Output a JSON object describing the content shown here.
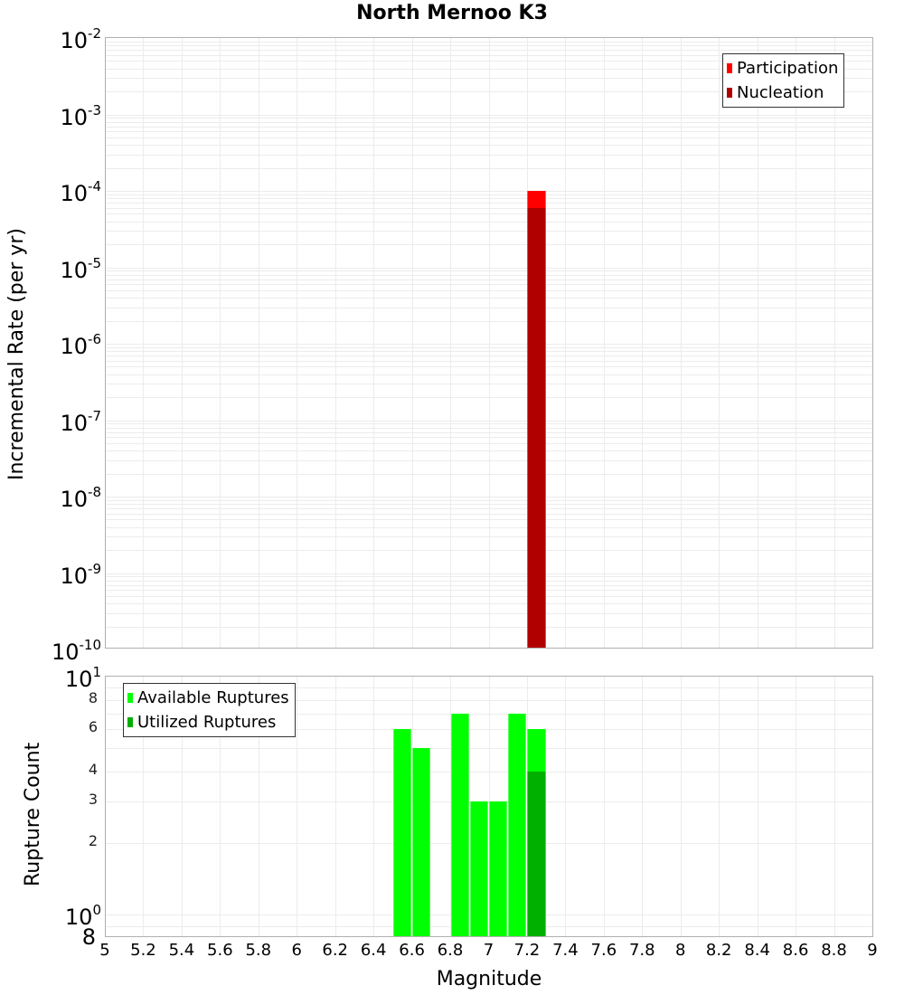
{
  "chart_data": [
    {
      "type": "bar",
      "title": "North Mernoo K3",
      "xlabel": "Magnitude",
      "ylabel": "Incremental Rate (per yr)",
      "yscale": "log",
      "xlim": [
        5,
        9
      ],
      "ylim": [
        1e-10,
        0.01
      ],
      "grid": true,
      "legend_position": "top-right",
      "bin_width": 0.1,
      "x": [
        7.25
      ],
      "series": [
        {
          "name": "Participation",
          "color": "#ff0000",
          "values": [
            0.0001
          ]
        },
        {
          "name": "Nucleation",
          "color": "#b00000",
          "values": [
            5.9e-05
          ]
        }
      ],
      "yticks": [
        {
          "base": "10",
          "exp": "-2",
          "value": 0.01
        },
        {
          "base": "10",
          "exp": "-3",
          "value": 0.001
        },
        {
          "base": "10",
          "exp": "-4",
          "value": 0.0001
        },
        {
          "base": "10",
          "exp": "-5",
          "value": 1e-05
        },
        {
          "base": "10",
          "exp": "-6",
          "value": 1e-06
        },
        {
          "base": "10",
          "exp": "-7",
          "value": 1e-07
        },
        {
          "base": "10",
          "exp": "-8",
          "value": 1e-08
        },
        {
          "base": "10",
          "exp": "-9",
          "value": 1e-09
        },
        {
          "base": "10",
          "exp": "-10",
          "value": 1e-10
        }
      ]
    },
    {
      "type": "bar",
      "title": "",
      "xlabel": "Magnitude",
      "ylabel": "Rupture Count",
      "yscale": "log",
      "xlim": [
        5,
        9
      ],
      "ylim": [
        0.8,
        10
      ],
      "grid": true,
      "legend_position": "top-left",
      "bin_width": 0.1,
      "x": [
        6.55,
        6.65,
        6.85,
        6.95,
        7.05,
        7.15,
        7.25
      ],
      "series": [
        {
          "name": "Available Ruptures",
          "color": "#00ff00",
          "values": [
            6,
            5,
            7,
            3,
            3,
            7,
            6
          ]
        },
        {
          "name": "Utilized Ruptures",
          "color": "#00b000",
          "values": [
            0,
            0,
            0,
            0,
            0,
            0,
            4
          ]
        }
      ],
      "yticks_major": [
        {
          "base": "10",
          "exp": "1",
          "value": 10
        },
        {
          "base": "10",
          "exp": "0",
          "value": 1
        }
      ],
      "yticks_minor": [
        {
          "label": "8",
          "value": 8
        },
        {
          "label": "6",
          "value": 6
        },
        {
          "label": "4",
          "value": 4
        },
        {
          "label": "3",
          "value": 3
        },
        {
          "label": "2",
          "value": 2
        },
        {
          "label": "8",
          "value": 0.8
        }
      ]
    }
  ],
  "xticks": [
    "5",
    "5.2",
    "5.4",
    "5.6",
    "5.8",
    "6",
    "6.2",
    "6.4",
    "6.6",
    "6.8",
    "7",
    "7.2",
    "7.4",
    "7.6",
    "7.8",
    "8",
    "8.2",
    "8.4",
    "8.6",
    "8.8",
    "9"
  ],
  "labels": {
    "title": "North Mernoo K3",
    "xlabel": "Magnitude",
    "top_ylabel": "Incremental Rate (per yr)",
    "bottom_ylabel": "Rupture Count",
    "legend_top": [
      "Participation",
      "Nucleation"
    ],
    "legend_bottom": [
      "Available Ruptures",
      "Utilized Ruptures"
    ]
  },
  "colors": {
    "participation": "#ff0000",
    "nucleation": "#b00000",
    "available": "#00ff00",
    "utilized": "#00b000",
    "grid": "#ececec",
    "frame": "#b0b0b0"
  }
}
